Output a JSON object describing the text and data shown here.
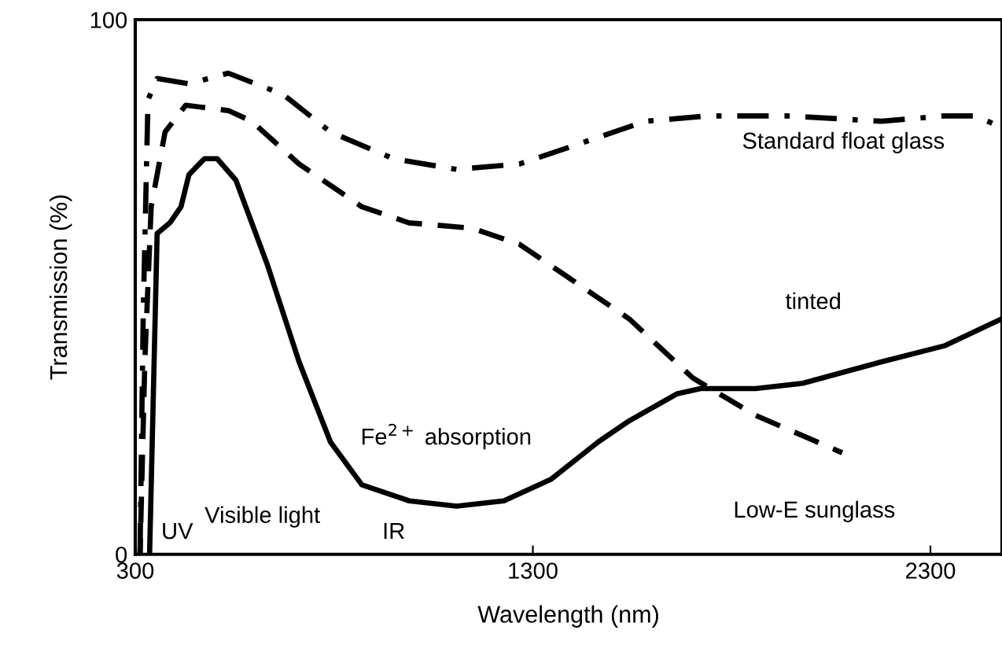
{
  "chart_data": {
    "type": "line",
    "xlabel": "Wavelength (nm)",
    "ylabel": "Transmission (%)",
    "xlim": [
      300,
      2480
    ],
    "ylim": [
      0,
      100
    ],
    "xticks": [
      300,
      1300,
      2300
    ],
    "yticks": [
      0,
      100
    ],
    "grid": false,
    "legend": false,
    "marker": "none",
    "series": [
      {
        "name": "Standard float glass",
        "color": "#000000",
        "line_style": "dashdot",
        "x": [
          312,
          320,
          332,
          355,
          435,
          534,
          672,
          791,
          949,
          1108,
          1266,
          1425,
          1583,
          1741,
          1939,
          2177,
          2335,
          2415,
          2474
        ],
        "values": [
          0,
          45,
          85,
          89,
          88,
          90,
          86,
          79,
          74,
          72,
          73,
          77,
          81,
          82,
          82,
          81,
          82,
          82,
          80
        ]
      },
      {
        "name": "tinted",
        "color": "#000000",
        "line_style": "solid",
        "x": [
          336,
          355,
          387,
          415,
          435,
          474,
          506,
          553,
          633,
          712,
          791,
          870,
          989,
          1108,
          1227,
          1345,
          1464,
          1543,
          1662,
          1722,
          1860,
          1979,
          2177,
          2335,
          2478
        ],
        "values": [
          0,
          60,
          62,
          65,
          71,
          74,
          74,
          70,
          54,
          36,
          21,
          13,
          10,
          9,
          10,
          14,
          21,
          25,
          30,
          31,
          31,
          32,
          36,
          39,
          44
        ]
      },
      {
        "name": "Low-E sunglass",
        "color": "#000000",
        "line_style": "dashed",
        "x": [
          312,
          324,
          340,
          375,
          427,
          534,
          593,
          712,
          870,
          989,
          1147,
          1266,
          1385,
          1543,
          1702,
          1860,
          2078
        ],
        "values": [
          0,
          36,
          65,
          79,
          84,
          83,
          81,
          73,
          65,
          62,
          61,
          58,
          52,
          44,
          33,
          26,
          19
        ]
      }
    ],
    "annotations": [
      "UV",
      "Visible light",
      "IR",
      "Fe$^{2+}$ absorption"
    ]
  }
}
